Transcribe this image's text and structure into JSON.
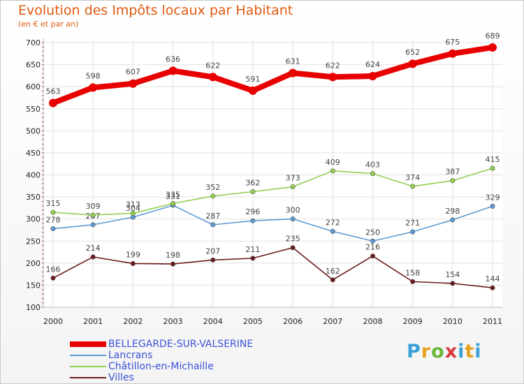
{
  "header": {
    "title": "Evolution des Impôts locaux par Habitant",
    "subtitle": "(en € et par an)"
  },
  "logo_text": "Proxiti",
  "chart_data": {
    "type": "line",
    "title": "Evolution des Impôts locaux par Habitant",
    "subtitle": "(en € et par an)",
    "xlabel": "",
    "ylabel": "",
    "x": [
      "2000",
      "2001",
      "2002",
      "2003",
      "2004",
      "2005",
      "2006",
      "2007",
      "2008",
      "2009",
      "2010",
      "2011"
    ],
    "ylim": [
      100,
      700
    ],
    "yticks": [
      100,
      150,
      200,
      250,
      300,
      350,
      400,
      450,
      500,
      550,
      600,
      650,
      700
    ],
    "grid": true,
    "legend_position": "bottom-left",
    "series": [
      {
        "name": "BELLEGARDE-SUR-VALSERINE",
        "color": "#e80000",
        "values": [
          563,
          598,
          607,
          636,
          622,
          591,
          631,
          622,
          624,
          652,
          675,
          689
        ]
      },
      {
        "name": "Lancrans",
        "color": "#5b9bd5",
        "values": [
          278,
          287,
          304,
          331,
          287,
          296,
          300,
          272,
          250,
          271,
          298,
          329
        ]
      },
      {
        "name": "Châtillon-en-Michaille",
        "color": "#92d050",
        "values": [
          315,
          309,
          313,
          335,
          352,
          362,
          373,
          409,
          403,
          374,
          387,
          415
        ]
      },
      {
        "name": "Villes",
        "color": "#6b1a1a",
        "values": [
          166,
          214,
          199,
          198,
          207,
          211,
          235,
          162,
          216,
          158,
          154,
          144
        ]
      }
    ]
  }
}
